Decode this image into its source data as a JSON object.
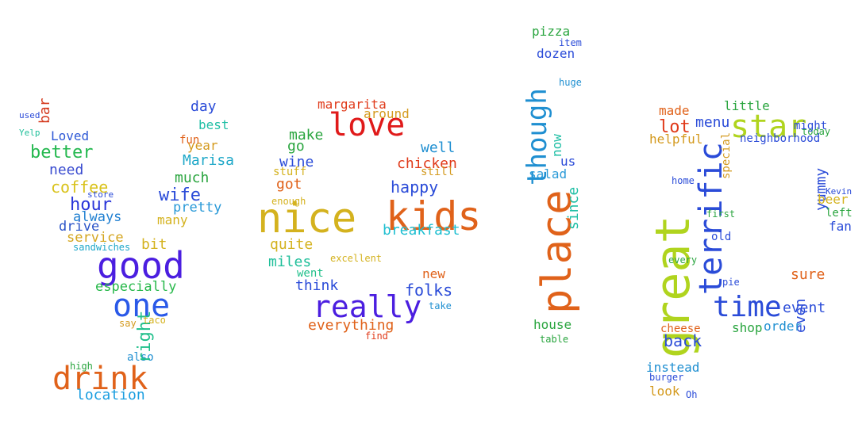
{
  "words": [
    {
      "text": "good",
      "color": "#4b1ee0"
    },
    {
      "text": "one",
      "color": "#2a59e8"
    },
    {
      "text": "drink",
      "color": "#e0621a"
    },
    {
      "text": "location",
      "color": "#1a9ee0"
    },
    {
      "text": "coffee",
      "color": "#d9c21a"
    },
    {
      "text": "hour",
      "color": "#2a35d9"
    },
    {
      "text": "better",
      "color": "#24b84f"
    },
    {
      "text": "Loved",
      "color": "#2d58d6"
    },
    {
      "text": "need",
      "color": "#3a4cd0"
    },
    {
      "text": "always",
      "color": "#1f7fd1"
    },
    {
      "text": "drive",
      "color": "#2a53c8"
    },
    {
      "text": "service",
      "color": "#d4a51e"
    },
    {
      "text": "especially",
      "color": "#27b84a"
    },
    {
      "text": "sandwiches",
      "color": "#1ea7c9"
    },
    {
      "text": "wife",
      "color": "#2a4bd8"
    },
    {
      "text": "pretty",
      "color": "#2a9ad8"
    },
    {
      "text": "much",
      "color": "#2aa53f"
    },
    {
      "text": "Marisa",
      "color": "#1fa8c8"
    },
    {
      "text": "year",
      "color": "#d49a1e"
    },
    {
      "text": "fun",
      "color": "#e0621a"
    },
    {
      "text": "best",
      "color": "#1fbfa5"
    },
    {
      "text": "day",
      "color": "#2a4bd8"
    },
    {
      "text": "many",
      "color": "#d4b21e"
    },
    {
      "text": "bit",
      "color": "#d4b21e"
    },
    {
      "text": "store",
      "color": "#2a4bd8"
    },
    {
      "text": "used",
      "color": "#2a4bd8"
    },
    {
      "text": "Yelp",
      "color": "#1fbf9a"
    },
    {
      "text": "bar",
      "color": "#d43a1e"
    },
    {
      "text": "also",
      "color": "#1f8fd1"
    },
    {
      "text": "right",
      "color": "#1fbf8a"
    },
    {
      "text": "taco",
      "color": "#d4b21e"
    },
    {
      "text": "say",
      "color": "#d49a1e"
    },
    {
      "text": "high",
      "color": "#2aa53f"
    },
    {
      "text": "kids",
      "color": "#e0621a"
    },
    {
      "text": "nice",
      "color": "#d4b21e"
    },
    {
      "text": "love",
      "color": "#e01a1a"
    },
    {
      "text": "really",
      "color": "#4b1ee0"
    },
    {
      "text": "everything",
      "color": "#e0621a"
    },
    {
      "text": "margarita",
      "color": "#e03a1a"
    },
    {
      "text": "around",
      "color": "#d49a1e"
    },
    {
      "text": "make",
      "color": "#2aa53f"
    },
    {
      "text": "well",
      "color": "#1f8fd1"
    },
    {
      "text": "chicken",
      "color": "#e03a1a"
    },
    {
      "text": "happy",
      "color": "#2a4bd8"
    },
    {
      "text": "wine",
      "color": "#2a4bd8"
    },
    {
      "text": "go",
      "color": "#2aa53f"
    },
    {
      "text": "got",
      "color": "#e0621a"
    },
    {
      "text": "breakfast",
      "color": "#1fbfd1"
    },
    {
      "text": "quite",
      "color": "#d4b21e"
    },
    {
      "text": "miles",
      "color": "#1fbf9a"
    },
    {
      "text": "folks",
      "color": "#2a4bd8"
    },
    {
      "text": "new",
      "color": "#e0621a"
    },
    {
      "text": "went",
      "color": "#1fbf8a"
    },
    {
      "text": "think",
      "color": "#2a4bd8"
    },
    {
      "text": "stuff",
      "color": "#d4b21e"
    },
    {
      "text": "still",
      "color": "#d49a1e"
    },
    {
      "text": "enough",
      "color": "#d4b21e"
    },
    {
      "text": "excellent",
      "color": "#d4b21e"
    },
    {
      "text": "take",
      "color": "#1f8fd1"
    },
    {
      "text": "find",
      "color": "#e03a1a"
    },
    {
      "text": "place",
      "color": "#e0621a"
    },
    {
      "text": "though",
      "color": "#1f8fd1"
    },
    {
      "text": "pizza",
      "color": "#2aa53f"
    },
    {
      "text": "dozen",
      "color": "#2a4bd8"
    },
    {
      "text": "salad",
      "color": "#2a9ad8"
    },
    {
      "text": "since",
      "color": "#1fbfa5"
    },
    {
      "text": "house",
      "color": "#2aa53f"
    },
    {
      "text": "us",
      "color": "#2a4bd8"
    },
    {
      "text": "now",
      "color": "#1fbfa5"
    },
    {
      "text": "table",
      "color": "#2aa53f"
    },
    {
      "text": "item",
      "color": "#2a4bd8"
    },
    {
      "text": "huge",
      "color": "#1f8fd1"
    },
    {
      "text": "great",
      "color": "#b0d41e"
    },
    {
      "text": "terrific",
      "color": "#2a4bd8"
    },
    {
      "text": "star",
      "color": "#b0d41e"
    },
    {
      "text": "time",
      "color": "#2a4bd8"
    },
    {
      "text": "lot",
      "color": "#e03a1a"
    },
    {
      "text": "menu",
      "color": "#2a4bd8"
    },
    {
      "text": "little",
      "color": "#2aa53f"
    },
    {
      "text": "made",
      "color": "#e0621a"
    },
    {
      "text": "helpful",
      "color": "#d49a1e"
    },
    {
      "text": "yummy",
      "color": "#2a4bd8"
    },
    {
      "text": "back",
      "color": "#2a4bd8"
    },
    {
      "text": "instead",
      "color": "#1f8fd1"
    },
    {
      "text": "look",
      "color": "#d49a1e"
    },
    {
      "text": "sure",
      "color": "#e0621a"
    },
    {
      "text": "event",
      "color": "#2a4bd8"
    },
    {
      "text": "even",
      "color": "#2a4bd8"
    },
    {
      "text": "shop",
      "color": "#2aa53f"
    },
    {
      "text": "order",
      "color": "#1f8fd1"
    },
    {
      "text": "beer",
      "color": "#d4b21e"
    },
    {
      "text": "fan",
      "color": "#2a4bd8"
    },
    {
      "text": "today",
      "color": "#2aa53f"
    },
    {
      "text": "might",
      "color": "#2a4bd8"
    },
    {
      "text": "neighborhood",
      "color": "#2a4bd8"
    },
    {
      "text": "burger",
      "color": "#2a4bd8"
    },
    {
      "text": "cheese",
      "color": "#e0621a"
    },
    {
      "text": "special",
      "color": "#d49a1e"
    },
    {
      "text": "old",
      "color": "#2a4bd8"
    },
    {
      "text": "left",
      "color": "#2aa53f"
    },
    {
      "text": "home",
      "color": "#2a4bd8"
    },
    {
      "text": "every",
      "color": "#2aa53f"
    },
    {
      "text": "pie",
      "color": "#2a4bd8"
    },
    {
      "text": "Kevin",
      "color": "#2a4bd8"
    },
    {
      "text": "Oh",
      "color": "#2a4bd8"
    },
    {
      "text": "first",
      "color": "#2aa53f"
    }
  ]
}
